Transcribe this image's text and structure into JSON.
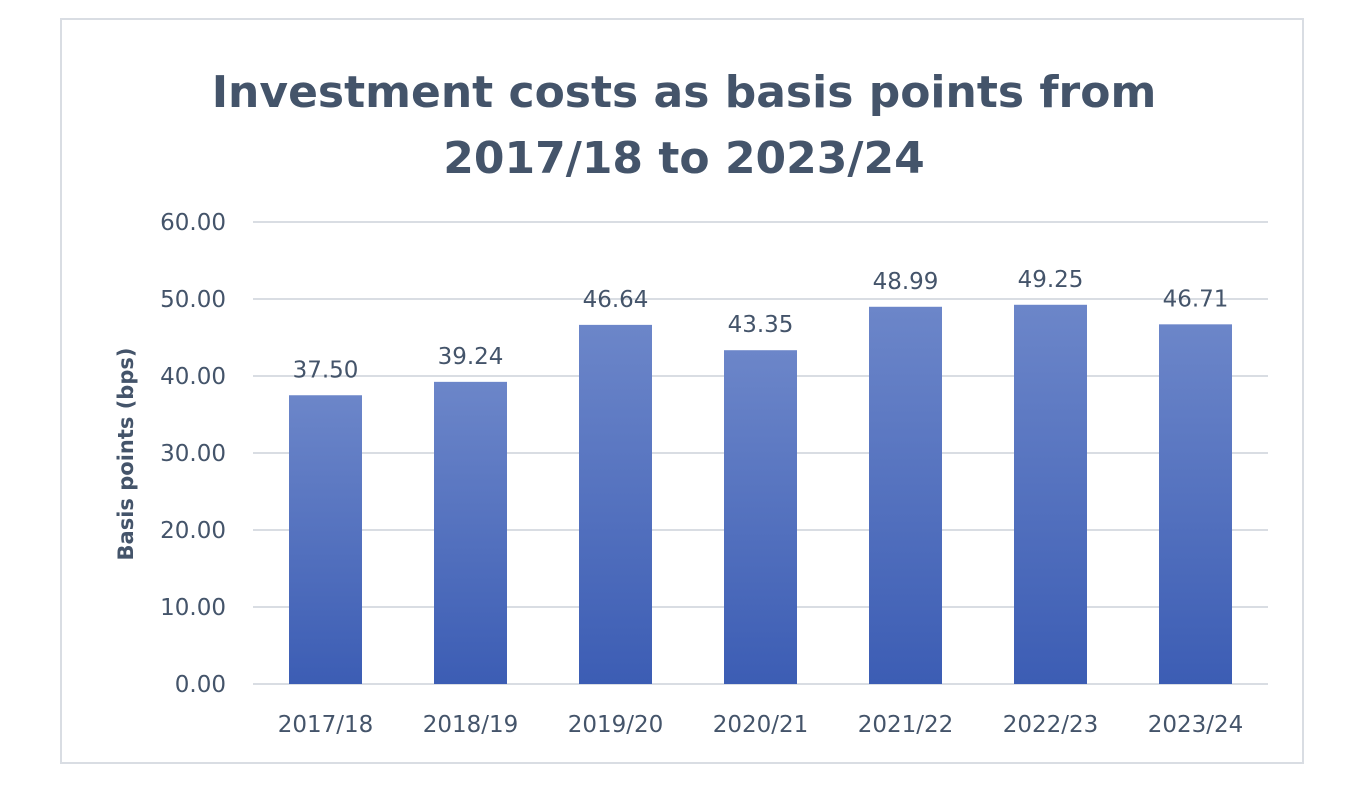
{
  "chart_data": {
    "type": "bar",
    "title_lines": [
      "Investment costs as basis points from",
      "2017/18 to 2023/24"
    ],
    "xlabel": "",
    "ylabel": "Basis points (bps)",
    "ylim": [
      0,
      60
    ],
    "yticks": [
      "0.00",
      "10.00",
      "20.00",
      "30.00",
      "40.00",
      "50.00",
      "60.00"
    ],
    "grid": true,
    "legend": "none",
    "categories": [
      "2017/18",
      "2018/19",
      "2019/20",
      "2020/21",
      "2021/22",
      "2022/23",
      "2023/24"
    ],
    "values": [
      37.5,
      39.24,
      46.64,
      43.35,
      48.99,
      49.25,
      46.71
    ],
    "data_labels": [
      "37.50",
      "39.24",
      "46.64",
      "43.35",
      "48.99",
      "49.25",
      "46.71"
    ],
    "colors": {
      "bar_top": "#6c86c9",
      "bar_bottom": "#3c5db4",
      "grid": "#d9dde3",
      "text": "#44546a",
      "title": "#44546a"
    }
  }
}
